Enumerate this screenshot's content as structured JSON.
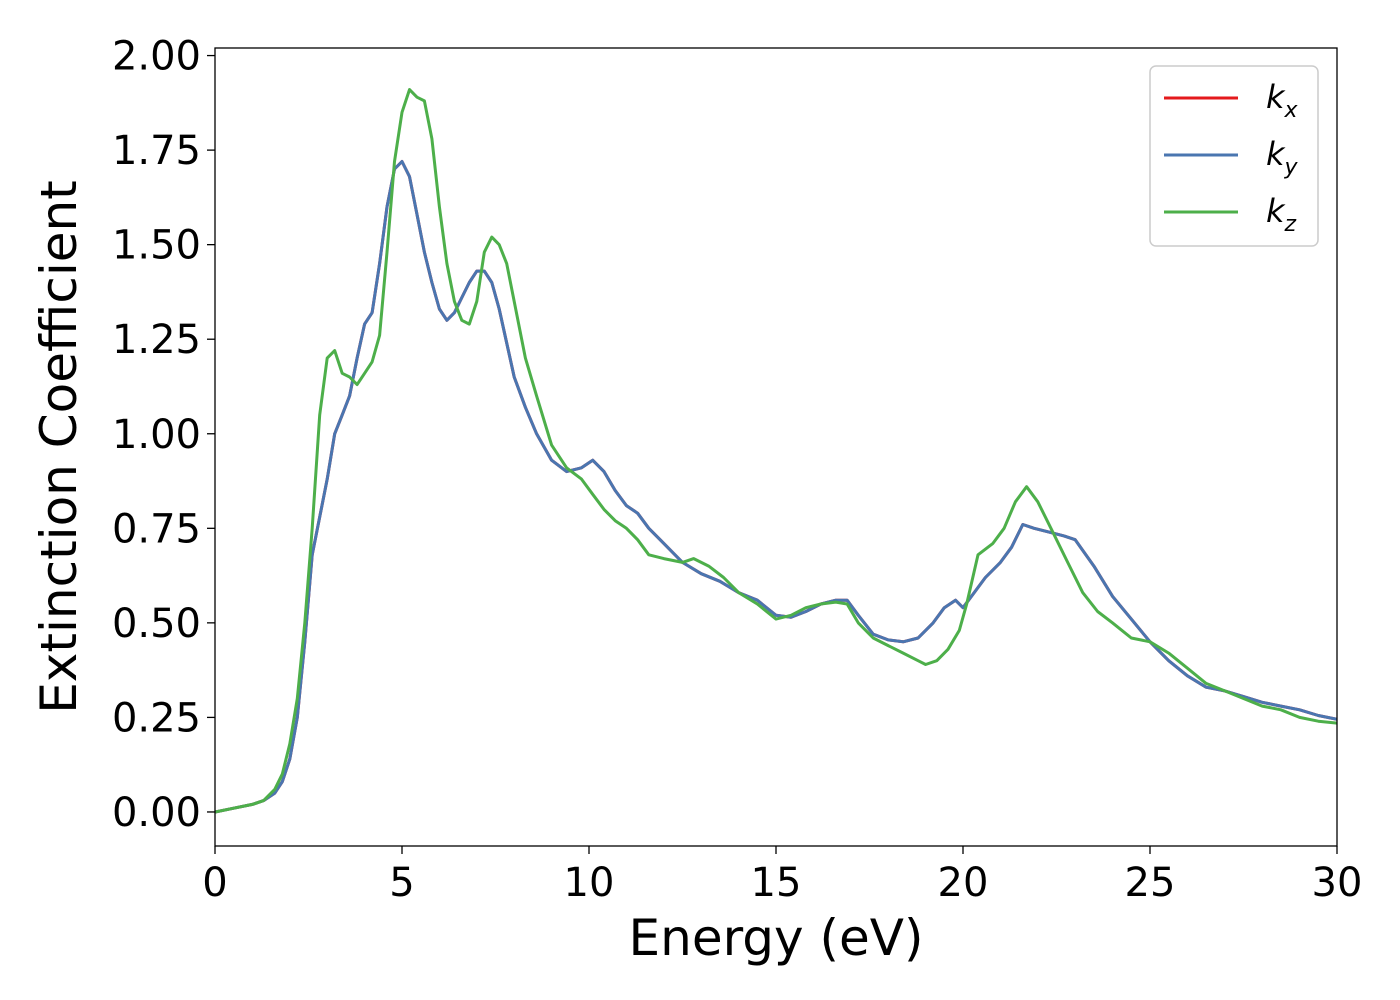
{
  "chart_data": {
    "type": "line",
    "xlabel": "Energy (eV)",
    "ylabel": "Extinction Coefficient",
    "xlim": [
      0,
      30
    ],
    "ylim": [
      -0.09,
      2.02
    ],
    "xticks": [
      0,
      5,
      10,
      15,
      20,
      25,
      30
    ],
    "xtick_labels": [
      "0",
      "5",
      "10",
      "15",
      "20",
      "25",
      "30"
    ],
    "yticks": [
      0.0,
      0.25,
      0.5,
      0.75,
      1.0,
      1.25,
      1.5,
      1.75,
      2.0
    ],
    "ytick_labels": [
      "0.00",
      "0.25",
      "0.50",
      "0.75",
      "1.00",
      "1.25",
      "1.50",
      "1.75",
      "2.00"
    ],
    "grid": false,
    "legend_position": "top-right",
    "series": [
      {
        "name": "k_x",
        "legend_main": "k",
        "legend_sub": "x",
        "color": "#e41a1c",
        "x": [
          0,
          0.5,
          1.0,
          1.3,
          1.6,
          1.8,
          2.0,
          2.2,
          2.4,
          2.6,
          2.8,
          3.0,
          3.2,
          3.4,
          3.6,
          3.8,
          4.0,
          4.2,
          4.4,
          4.6,
          4.8,
          5.0,
          5.2,
          5.4,
          5.6,
          5.8,
          6.0,
          6.2,
          6.4,
          6.6,
          6.8,
          7.0,
          7.2,
          7.4,
          7.6,
          7.8,
          8.0,
          8.3,
          8.6,
          9.0,
          9.4,
          9.8,
          10.1,
          10.4,
          10.7,
          11.0,
          11.3,
          11.6,
          12.0,
          12.5,
          13.0,
          13.5,
          14.0,
          14.5,
          15.0,
          15.4,
          15.8,
          16.2,
          16.6,
          16.9,
          17.2,
          17.6,
          18.0,
          18.4,
          18.8,
          19.2,
          19.5,
          19.8,
          20.0,
          20.3,
          20.6,
          21.0,
          21.3,
          21.6,
          21.9,
          22.3,
          22.7,
          23.0,
          23.5,
          24.0,
          24.5,
          25.0,
          25.5,
          26.0,
          26.5,
          27.0,
          27.5,
          28.0,
          28.5,
          29.0,
          29.5,
          30.0
        ],
        "y": [
          0.0,
          0.01,
          0.02,
          0.03,
          0.05,
          0.08,
          0.14,
          0.25,
          0.45,
          0.68,
          0.78,
          0.88,
          1.0,
          1.05,
          1.1,
          1.2,
          1.29,
          1.32,
          1.45,
          1.6,
          1.7,
          1.72,
          1.68,
          1.58,
          1.48,
          1.4,
          1.33,
          1.3,
          1.32,
          1.36,
          1.4,
          1.43,
          1.43,
          1.4,
          1.33,
          1.24,
          1.15,
          1.07,
          1.0,
          0.93,
          0.9,
          0.91,
          0.93,
          0.9,
          0.85,
          0.81,
          0.79,
          0.75,
          0.71,
          0.66,
          0.63,
          0.61,
          0.58,
          0.56,
          0.52,
          0.515,
          0.53,
          0.55,
          0.56,
          0.56,
          0.52,
          0.47,
          0.455,
          0.45,
          0.46,
          0.5,
          0.54,
          0.56,
          0.54,
          0.58,
          0.62,
          0.66,
          0.7,
          0.76,
          0.75,
          0.74,
          0.73,
          0.72,
          0.65,
          0.57,
          0.51,
          0.45,
          0.4,
          0.36,
          0.33,
          0.32,
          0.305,
          0.29,
          0.28,
          0.27,
          0.255,
          0.245
        ]
      },
      {
        "name": "k_y",
        "legend_main": "k",
        "legend_sub": "y",
        "color": "#4a76b0",
        "x": [
          0,
          0.5,
          1.0,
          1.3,
          1.6,
          1.8,
          2.0,
          2.2,
          2.4,
          2.6,
          2.8,
          3.0,
          3.2,
          3.4,
          3.6,
          3.8,
          4.0,
          4.2,
          4.4,
          4.6,
          4.8,
          5.0,
          5.2,
          5.4,
          5.6,
          5.8,
          6.0,
          6.2,
          6.4,
          6.6,
          6.8,
          7.0,
          7.2,
          7.4,
          7.6,
          7.8,
          8.0,
          8.3,
          8.6,
          9.0,
          9.4,
          9.8,
          10.1,
          10.4,
          10.7,
          11.0,
          11.3,
          11.6,
          12.0,
          12.5,
          13.0,
          13.5,
          14.0,
          14.5,
          15.0,
          15.4,
          15.8,
          16.2,
          16.6,
          16.9,
          17.2,
          17.6,
          18.0,
          18.4,
          18.8,
          19.2,
          19.5,
          19.8,
          20.0,
          20.3,
          20.6,
          21.0,
          21.3,
          21.6,
          21.9,
          22.3,
          22.7,
          23.0,
          23.5,
          24.0,
          24.5,
          25.0,
          25.5,
          26.0,
          26.5,
          27.0,
          27.5,
          28.0,
          28.5,
          29.0,
          29.5,
          30.0
        ],
        "y": [
          0.0,
          0.01,
          0.02,
          0.03,
          0.05,
          0.08,
          0.14,
          0.25,
          0.45,
          0.68,
          0.78,
          0.88,
          1.0,
          1.05,
          1.1,
          1.2,
          1.29,
          1.32,
          1.45,
          1.6,
          1.7,
          1.72,
          1.68,
          1.58,
          1.48,
          1.4,
          1.33,
          1.3,
          1.32,
          1.36,
          1.4,
          1.43,
          1.43,
          1.4,
          1.33,
          1.24,
          1.15,
          1.07,
          1.0,
          0.93,
          0.9,
          0.91,
          0.93,
          0.9,
          0.85,
          0.81,
          0.79,
          0.75,
          0.71,
          0.66,
          0.63,
          0.61,
          0.58,
          0.56,
          0.52,
          0.515,
          0.53,
          0.55,
          0.56,
          0.56,
          0.52,
          0.47,
          0.455,
          0.45,
          0.46,
          0.5,
          0.54,
          0.56,
          0.54,
          0.58,
          0.62,
          0.66,
          0.7,
          0.76,
          0.75,
          0.74,
          0.73,
          0.72,
          0.65,
          0.57,
          0.51,
          0.45,
          0.4,
          0.36,
          0.33,
          0.32,
          0.305,
          0.29,
          0.28,
          0.27,
          0.255,
          0.245
        ]
      },
      {
        "name": "k_z",
        "legend_main": "k",
        "legend_sub": "z",
        "color": "#4daf4a",
        "x": [
          0,
          0.5,
          1.0,
          1.3,
          1.6,
          1.8,
          2.0,
          2.2,
          2.4,
          2.6,
          2.8,
          3.0,
          3.2,
          3.4,
          3.6,
          3.8,
          4.0,
          4.2,
          4.4,
          4.6,
          4.8,
          5.0,
          5.2,
          5.4,
          5.6,
          5.8,
          6.0,
          6.2,
          6.4,
          6.6,
          6.8,
          7.0,
          7.2,
          7.4,
          7.6,
          7.8,
          8.0,
          8.3,
          8.6,
          9.0,
          9.4,
          9.8,
          10.1,
          10.4,
          10.7,
          11.0,
          11.3,
          11.6,
          12.0,
          12.5,
          12.8,
          13.2,
          13.6,
          14.0,
          14.5,
          15.0,
          15.4,
          15.8,
          16.2,
          16.6,
          16.9,
          17.2,
          17.6,
          18.0,
          18.4,
          18.8,
          19.0,
          19.3,
          19.6,
          19.9,
          20.1,
          20.4,
          20.8,
          21.1,
          21.4,
          21.7,
          22.0,
          22.4,
          22.8,
          23.2,
          23.6,
          24.0,
          24.5,
          25.0,
          25.5,
          26.0,
          26.5,
          27.0,
          27.5,
          28.0,
          28.5,
          29.0,
          29.5,
          30.0
        ],
        "y": [
          0.0,
          0.01,
          0.02,
          0.03,
          0.06,
          0.1,
          0.18,
          0.3,
          0.5,
          0.75,
          1.05,
          1.2,
          1.22,
          1.16,
          1.15,
          1.13,
          1.16,
          1.19,
          1.26,
          1.48,
          1.72,
          1.85,
          1.91,
          1.89,
          1.88,
          1.78,
          1.6,
          1.45,
          1.35,
          1.3,
          1.29,
          1.35,
          1.48,
          1.52,
          1.5,
          1.45,
          1.35,
          1.2,
          1.1,
          0.97,
          0.91,
          0.88,
          0.84,
          0.8,
          0.77,
          0.75,
          0.72,
          0.68,
          0.67,
          0.66,
          0.67,
          0.65,
          0.62,
          0.58,
          0.55,
          0.51,
          0.52,
          0.54,
          0.55,
          0.555,
          0.55,
          0.5,
          0.46,
          0.44,
          0.42,
          0.4,
          0.39,
          0.4,
          0.43,
          0.48,
          0.55,
          0.68,
          0.71,
          0.75,
          0.82,
          0.86,
          0.82,
          0.74,
          0.66,
          0.58,
          0.53,
          0.5,
          0.46,
          0.45,
          0.42,
          0.38,
          0.34,
          0.32,
          0.3,
          0.28,
          0.27,
          0.25,
          0.24,
          0.235
        ]
      }
    ]
  }
}
